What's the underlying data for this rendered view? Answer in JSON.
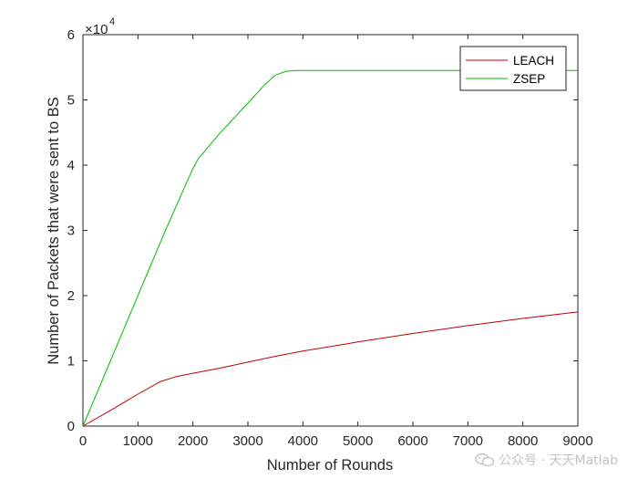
{
  "chart_data": {
    "type": "line",
    "xlabel": "Number of Rounds",
    "ylabel": "Number of Packets that were sent to BS",
    "xlim": [
      0,
      9000
    ],
    "ylim": [
      0,
      60000
    ],
    "x_ticks": [
      "0",
      "1000",
      "2000",
      "3000",
      "4000",
      "5000",
      "6000",
      "7000",
      "8000",
      "9000"
    ],
    "y_ticks": [
      "0",
      "1",
      "2",
      "3",
      "4",
      "5",
      "6"
    ],
    "y_exponent_label": "×10",
    "y_exponent_power": "4",
    "grid": false,
    "legend_position": "top-right",
    "series": [
      {
        "name": "LEACH",
        "color": "#c00000",
        "x": [
          0,
          500,
          1000,
          1400,
          1700,
          2000,
          2500,
          3000,
          3500,
          4000,
          5000,
          6000,
          7000,
          8000,
          9000
        ],
        "y": [
          0,
          2400,
          4900,
          6800,
          7600,
          8100,
          8900,
          9800,
          10700,
          11500,
          12900,
          14200,
          15400,
          16500,
          17500
        ]
      },
      {
        "name": "ZSEP",
        "color": "#00c000",
        "x": [
          0,
          500,
          1000,
          1500,
          2000,
          2100,
          2500,
          3000,
          3300,
          3500,
          3700,
          3900,
          4000,
          5000,
          6000,
          7000,
          8000,
          9000
        ],
        "y": [
          0,
          10000,
          20000,
          30000,
          39500,
          41000,
          45000,
          49500,
          52300,
          53800,
          54400,
          54500,
          54500,
          54500,
          54500,
          54500,
          54500,
          54500
        ]
      }
    ]
  },
  "watermark": {
    "text": "公众号 · 天天Matlab",
    "icon": "wechat-icon"
  }
}
